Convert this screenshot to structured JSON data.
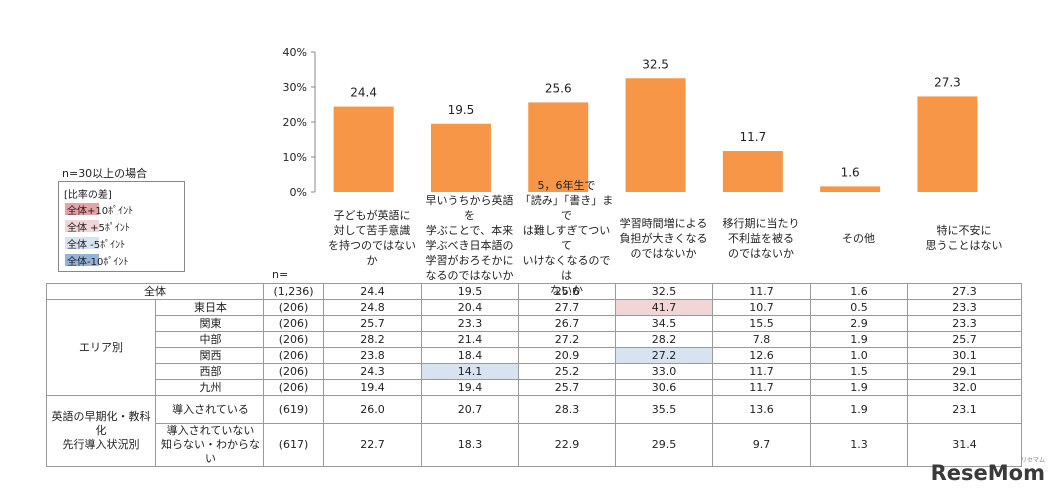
{
  "chart_data": {
    "type": "bar",
    "categories": [
      "子どもが英語に\n対して苦手意識\nを持つのではないか",
      "早いうちから英語を\n学ぶことで、本来\n学ぶべき日本語の\n学習がおろそかに\nなるのではないか",
      "5，6年生で\n「読み」「書き」まで\nは難しすぎてついて\nいけなくなるのでは\nないか",
      "学習時間増による\n負担が大きくなる\nのではないか",
      "移行期に当たり\n不利益を被る\nのではないか",
      "その他",
      "特に不安に\n思うことはない"
    ],
    "values": [
      24.4,
      19.5,
      25.6,
      32.5,
      11.7,
      1.6,
      27.3
    ],
    "value_labels": [
      "24.4",
      "19.5",
      "25.6",
      "32.5",
      "11.7",
      "1.6",
      "27.3"
    ],
    "ylim": [
      0,
      40
    ],
    "yticks": [
      "40%",
      "30%",
      "20%",
      "10%",
      "0%"
    ],
    "bar_color": "#f79646",
    "grid": false
  },
  "note": "n=30以上の場合",
  "legend": {
    "title": "[比率の差]",
    "items": [
      {
        "label": "全体+10ﾎﾟｲﾝﾄ",
        "color": "#e6a3a6"
      },
      {
        "label": "全体 +5ﾎﾟｲﾝﾄ",
        "color": "#f2d5d7"
      },
      {
        "label": "全体 -5ﾎﾟｲﾝﾄ",
        "color": "#d7e3f0"
      },
      {
        "label": "全体-10ﾎﾟｲﾝﾄ",
        "color": "#95b3d7"
      }
    ]
  },
  "table": {
    "n_label": "n=",
    "total": {
      "label": "全体",
      "n": "(1,236)",
      "values": [
        "24.4",
        "19.5",
        "25.6",
        "32.5",
        "11.7",
        "1.6",
        "27.3"
      ]
    },
    "groups": [
      {
        "label": "エリア別",
        "rows": [
          {
            "label": "東日本",
            "n": "(206)",
            "values": [
              "24.8",
              "20.4",
              "27.7",
              "41.7",
              "10.7",
              "0.5",
              "23.3"
            ]
          },
          {
            "label": "関東",
            "n": "(206)",
            "values": [
              "25.7",
              "23.3",
              "26.7",
              "34.5",
              "15.5",
              "2.9",
              "23.3"
            ]
          },
          {
            "label": "中部",
            "n": "(206)",
            "values": [
              "28.2",
              "21.4",
              "27.2",
              "28.2",
              "7.8",
              "1.9",
              "25.7"
            ]
          },
          {
            "label": "関西",
            "n": "(206)",
            "values": [
              "23.8",
              "18.4",
              "20.9",
              "27.2",
              "12.6",
              "1.0",
              "30.1"
            ]
          },
          {
            "label": "西部",
            "n": "(206)",
            "values": [
              "24.3",
              "14.1",
              "25.2",
              "33.0",
              "11.7",
              "1.5",
              "29.1"
            ]
          },
          {
            "label": "九州",
            "n": "(206)",
            "values": [
              "19.4",
              "19.4",
              "25.7",
              "30.6",
              "11.7",
              "1.9",
              "32.0"
            ]
          }
        ]
      },
      {
        "label": "英語の早期化・教科化\n先行導入状況別",
        "rows": [
          {
            "label": "導入されている",
            "n": "(619)",
            "values": [
              "26.0",
              "20.7",
              "28.3",
              "35.5",
              "13.6",
              "1.9",
              "23.1"
            ]
          },
          {
            "label": "導入されていない\n知らない・わからない",
            "n": "(617)",
            "values": [
              "22.7",
              "18.3",
              "22.9",
              "29.5",
              "9.7",
              "1.3",
              "31.4"
            ]
          }
        ]
      }
    ],
    "highlights": [
      {
        "group": 0,
        "row": 0,
        "col": 3,
        "level": "+5"
      },
      {
        "group": 0,
        "row": 3,
        "col": 3,
        "level": "-5"
      },
      {
        "group": 0,
        "row": 4,
        "col": 1,
        "level": "-5"
      }
    ]
  },
  "logo": {
    "text": "ReseMom",
    "sub": "リセマム"
  }
}
